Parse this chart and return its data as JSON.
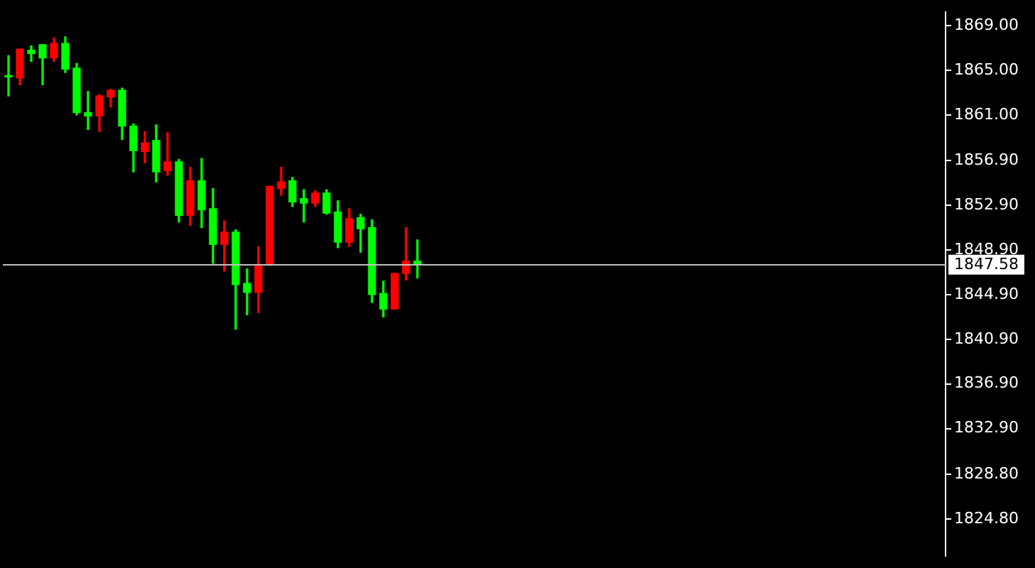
{
  "chart_data": {
    "type": "candlestick",
    "categories": [
      null,
      null,
      null,
      null,
      null,
      null,
      null,
      null,
      null,
      null,
      null,
      null,
      null,
      null,
      null,
      null,
      null,
      null,
      null,
      null,
      null,
      null,
      null,
      null,
      null,
      null,
      null,
      null,
      null,
      null,
      null,
      null,
      null,
      null,
      null,
      null,
      null,
      null,
      null,
      null,
      null,
      null,
      null,
      null,
      null,
      null,
      null,
      null,
      null,
      null,
      null,
      null,
      null,
      null,
      null,
      null,
      null,
      null,
      null,
      null,
      null,
      null,
      null,
      null,
      null,
      null,
      null,
      null,
      null,
      null,
      null,
      null,
      null,
      null,
      null,
      null,
      null,
      null,
      null,
      null,
      null,
      null,
      null
    ],
    "ohlc": [
      [
        1864.5,
        1866.3,
        1862.7,
        1864.4
      ],
      [
        1864.3,
        1866.9,
        1863.7,
        1866.9
      ],
      [
        1866.8,
        1867.2,
        1865.8,
        1866.5
      ],
      [
        1867.3,
        1867.3,
        1863.7,
        1866.1
      ],
      [
        1866.1,
        1867.9,
        1865.8,
        1867.4
      ],
      [
        1867.4,
        1868.0,
        1864.8,
        1865.1
      ],
      [
        1865.2,
        1865.6,
        1861.0,
        1861.2
      ],
      [
        1861.2,
        1863.1,
        1859.7,
        1860.9
      ],
      [
        1860.9,
        1862.8,
        1859.5,
        1862.7
      ],
      [
        1862.6,
        1863.3,
        1861.7,
        1863.2
      ],
      [
        1863.2,
        1863.4,
        1858.8,
        1860.0
      ],
      [
        1860.0,
        1860.2,
        1855.9,
        1857.8
      ],
      [
        1857.7,
        1859.5,
        1856.7,
        1858.5
      ],
      [
        1858.7,
        1860.1,
        1855.0,
        1855.9
      ],
      [
        1856.0,
        1859.4,
        1855.6,
        1856.8
      ],
      [
        1856.8,
        1857.0,
        1851.4,
        1852.0
      ],
      [
        1852.0,
        1856.3,
        1851.1,
        1855.1
      ],
      [
        1855.1,
        1857.1,
        1850.9,
        1852.5
      ],
      [
        1852.6,
        1854.4,
        1847.7,
        1849.4
      ],
      [
        1849.4,
        1851.5,
        1847.0,
        1850.5
      ],
      [
        1850.5,
        1850.7,
        1841.8,
        1845.8
      ],
      [
        1845.9,
        1847.2,
        1843.1,
        1845.1
      ],
      [
        1845.1,
        1849.2,
        1843.3,
        1847.6
      ],
      [
        1847.6,
        1854.6,
        1847.5,
        1854.6
      ],
      [
        1854.4,
        1856.3,
        1853.8,
        1855.0
      ],
      [
        1855.1,
        1855.4,
        1852.8,
        1853.2
      ],
      [
        1853.5,
        1854.3,
        1851.4,
        1853.1
      ],
      [
        1853.1,
        1854.2,
        1852.8,
        1854.0
      ],
      [
        1854.0,
        1854.3,
        1852.1,
        1852.2
      ],
      [
        1852.3,
        1853.3,
        1849.1,
        1849.6
      ],
      [
        1849.6,
        1852.6,
        1849.2,
        1851.7
      ],
      [
        1851.8,
        1852.1,
        1848.7,
        1850.8
      ],
      [
        1850.9,
        1851.6,
        1844.2,
        1844.9
      ],
      [
        1845.0,
        1846.1,
        1842.9,
        1843.6
      ],
      [
        1843.6,
        1846.8,
        1843.6,
        1846.8
      ],
      [
        1846.8,
        1850.9,
        1846.2,
        1847.9
      ],
      [
        1847.9,
        1849.8,
        1846.4,
        1847.6
      ],
      null,
      null,
      null,
      null,
      null,
      null,
      null,
      null,
      null,
      null,
      null,
      null,
      null,
      null,
      null,
      null,
      null,
      null,
      null,
      null,
      null,
      null,
      null,
      null,
      null,
      null,
      null,
      null,
      null,
      null,
      null,
      null,
      null,
      null,
      null,
      null,
      null,
      null,
      null,
      null,
      null,
      null,
      null,
      null,
      null,
      null
    ],
    "colors": [
      "#00ff00",
      "#ff0000",
      "#00ff00",
      "#00ff00",
      "#ff0000",
      "#00ff00",
      "#00ff00",
      "#00ff00",
      "#ff0000",
      "#ff0000",
      "#00ff00",
      "#00ff00",
      "#ff0000",
      "#00ff00",
      "#ff0000",
      "#00ff00",
      "#ff0000",
      "#00ff00",
      "#00ff00",
      "#ff0000",
      "#00ff00",
      "#00ff00",
      "#ff0000",
      "#ff0000",
      "#ff0000",
      "#00ff00",
      "#00ff00",
      "#ff0000",
      "#00ff00",
      "#00ff00",
      "#ff0000",
      "#00ff00",
      "#00ff00",
      "#00ff00",
      "#ff0000",
      "#ff0000",
      "#00ff00",
      null,
      null,
      null,
      null,
      null,
      null,
      null,
      null,
      null,
      null,
      null,
      null,
      null,
      null,
      null,
      null,
      null,
      null,
      null,
      null,
      null,
      null,
      null,
      null,
      null,
      null,
      null,
      null,
      null,
      null,
      null,
      null,
      null,
      null,
      null,
      null,
      null,
      null,
      null,
      null,
      null,
      null,
      null,
      null,
      null,
      null
    ],
    "ylim": [
      1821.5,
      1870.2
    ],
    "yticks": [
      {
        "value": 1869,
        "label": "1869.00"
      },
      {
        "value": 1865,
        "label": "1865.00"
      },
      {
        "value": 1861,
        "label": "1861.00"
      },
      {
        "value": 1856.9,
        "label": "1856.90"
      },
      {
        "value": 1852.9,
        "label": "1852.90"
      },
      {
        "value": 1848.9,
        "label": "1848.90"
      },
      {
        "value": 1844.9,
        "label": "1844.90"
      },
      {
        "value": 1840.9,
        "label": "1840.90"
      },
      {
        "value": 1836.9,
        "label": "1836.90"
      },
      {
        "value": 1832.9,
        "label": "1832.90"
      },
      {
        "value": 1828.8,
        "label": "1828.80"
      },
      {
        "value": 1824.8,
        "label": "1824.80"
      }
    ],
    "ref_lines": [
      {
        "axis": "y",
        "value": 1847.58,
        "label": "1847.58",
        "color": "#c0c0c0"
      }
    ]
  }
}
